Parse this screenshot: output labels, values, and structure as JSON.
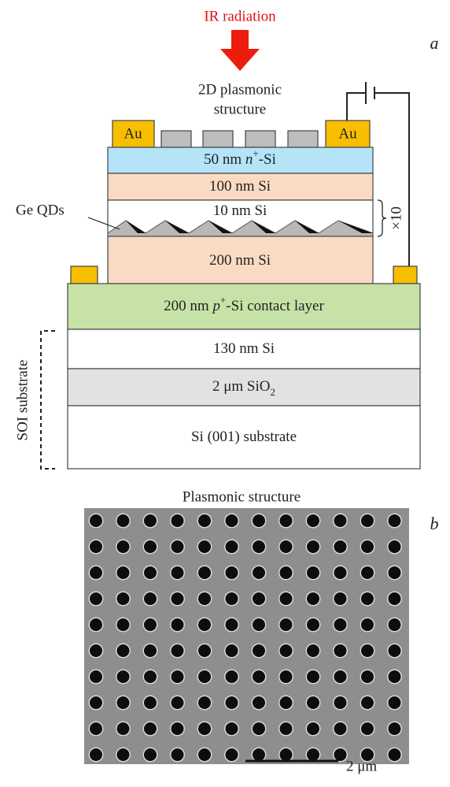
{
  "header": {
    "title": "IR radiation",
    "panel_a": "a",
    "panel_b": "b"
  },
  "plasmonic_label": [
    "2D plasmonic",
    "structure"
  ],
  "contacts": [
    "Au",
    "Au"
  ],
  "layers": [
    {
      "parts": [
        "50 nm ",
        "n",
        "+",
        "-Si"
      ]
    },
    {
      "parts": [
        "100 nm Si"
      ]
    },
    {
      "parts": [
        "10 nm Si"
      ]
    },
    {
      "parts": [
        "200 nm Si"
      ]
    },
    {
      "parts": [
        "200 nm ",
        "p",
        "+",
        "-Si contact layer"
      ]
    },
    {
      "parts": [
        "130 nm Si"
      ]
    },
    {
      "parts": [
        "2 μm SiO",
        "2"
      ]
    },
    {
      "parts": [
        "Si (001) substrate"
      ]
    }
  ],
  "qd_label": "Ge QDs",
  "repeat": "×10",
  "substrate_label": "SOI substrate",
  "sem": {
    "title": "Plasmonic structure",
    "scale_bar": "2 μm"
  }
}
